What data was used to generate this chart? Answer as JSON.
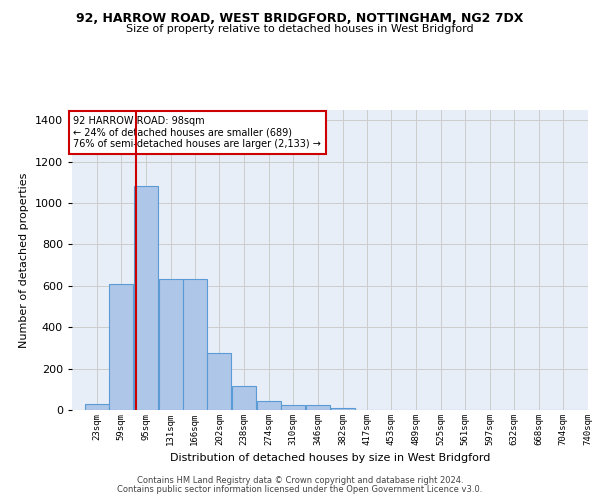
{
  "title_line1": "92, HARROW ROAD, WEST BRIDGFORD, NOTTINGHAM, NG2 7DX",
  "title_line2": "Size of property relative to detached houses in West Bridgford",
  "xlabel": "Distribution of detached houses by size in West Bridgford",
  "ylabel": "Number of detached properties",
  "bin_labels": [
    "23sqm",
    "59sqm",
    "95sqm",
    "131sqm",
    "166sqm",
    "202sqm",
    "238sqm",
    "274sqm",
    "310sqm",
    "346sqm",
    "382sqm",
    "417sqm",
    "453sqm",
    "489sqm",
    "525sqm",
    "561sqm",
    "597sqm",
    "632sqm",
    "668sqm",
    "704sqm",
    "740sqm"
  ],
  "bin_edges": [
    23,
    59,
    95,
    131,
    166,
    202,
    238,
    274,
    310,
    346,
    382,
    417,
    453,
    489,
    525,
    561,
    597,
    632,
    668,
    704,
    740
  ],
  "bar_heights": [
    30,
    610,
    1085,
    635,
    635,
    275,
    115,
    45,
    22,
    22,
    10,
    0,
    0,
    0,
    0,
    0,
    0,
    0,
    0,
    0,
    0
  ],
  "bar_color": "#aec6e8",
  "bar_edge_color": "#5b9bd5",
  "vline_x": 98,
  "vline_color": "#cc0000",
  "annotation_text": "92 HARROW ROAD: 98sqm\n← 24% of detached houses are smaller (689)\n76% of semi-detached houses are larger (2,133) →",
  "annotation_box_color": "#ffffff",
  "annotation_box_edge": "#cc0000",
  "ylim": [
    0,
    1450
  ],
  "yticks": [
    0,
    200,
    400,
    600,
    800,
    1000,
    1200,
    1400
  ],
  "bg_color": "#e8eef7",
  "footer_line1": "Contains HM Land Registry data © Crown copyright and database right 2024.",
  "footer_line2": "Contains public sector information licensed under the Open Government Licence v3.0."
}
